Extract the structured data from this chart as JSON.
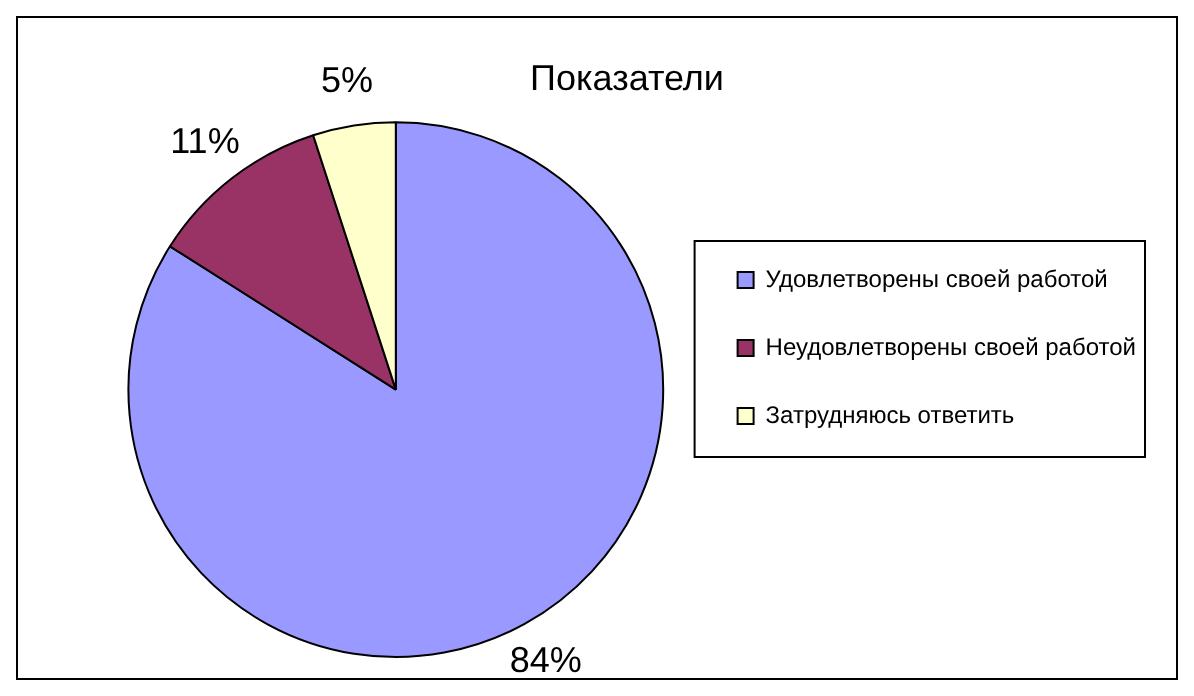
{
  "chart_data": {
    "type": "pie",
    "title": "Показатели",
    "categories": [
      "Удовлетворены своей работой",
      "Неудовлетворены своей работой",
      "Затрудняюсь ответить"
    ],
    "values": [
      84,
      11,
      5
    ],
    "colors": [
      "#9999ff",
      "#993366",
      "#ffffcc"
    ],
    "value_labels": [
      "84%",
      "11%",
      "5%"
    ],
    "legend": "right"
  }
}
